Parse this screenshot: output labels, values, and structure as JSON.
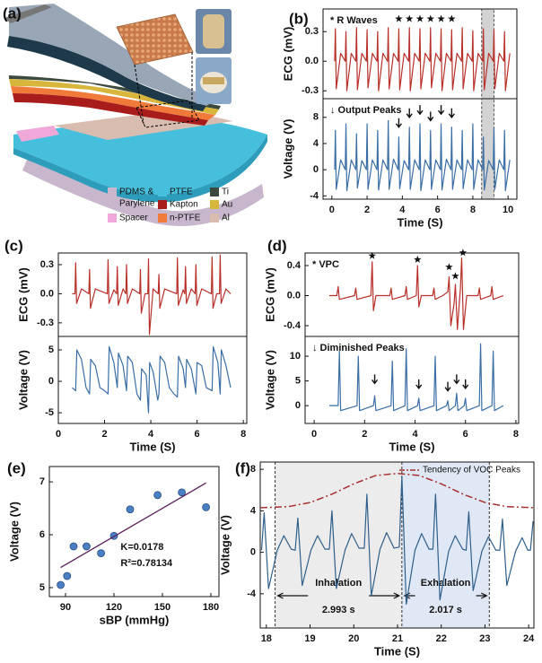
{
  "diagram": {
    "panel": "(a)",
    "legend": [
      {
        "label": [
          "PDMS &",
          "Parylene"
        ],
        "color": "#c8b6cc"
      },
      {
        "label": [
          "PTFE"
        ],
        "color": "#45bfdc"
      },
      {
        "label": [
          "Ti"
        ],
        "color": "#3b4a3c"
      },
      {
        "label": [
          "Spacer"
        ],
        "color": "#f0a8d8"
      },
      {
        "label": [
          "Kapton"
        ],
        "color": "#a81c1c"
      },
      {
        "label": [
          "Au"
        ],
        "color": "#d8b63c"
      },
      {
        "label": [
          "n-PTFE"
        ],
        "color": "#ef7a3a"
      },
      {
        "label": [
          "Al"
        ],
        "color": "#d8bcb0"
      }
    ]
  },
  "chart_data": [
    {
      "panel": "(b)",
      "type": "line",
      "ylabel": "ECG (mV)",
      "annotation": "* R Waves",
      "color": "#b8302a",
      "x": [
        0.16,
        0.2,
        0.25,
        0.5,
        0.76,
        0.8,
        0.85,
        1.1,
        1.36,
        1.4,
        1.45,
        1.7,
        1.96,
        2.0,
        2.05,
        2.3,
        2.56,
        2.6,
        2.65,
        2.9,
        3.16,
        3.2,
        3.25,
        3.5,
        3.76,
        3.8,
        3.85,
        4.1,
        4.36,
        4.4,
        4.45,
        4.7,
        4.96,
        5.0,
        5.05,
        5.3,
        5.56,
        5.6,
        5.65,
        5.9,
        6.16,
        6.2,
        6.25,
        6.5,
        6.76,
        6.8,
        6.85,
        7.1,
        7.36,
        7.4,
        7.45,
        7.7,
        7.96,
        8.0,
        8.05,
        8.3,
        8.56,
        8.6,
        8.65,
        8.9,
        9.16,
        9.2,
        9.25,
        9.5,
        9.76,
        9.8,
        9.85,
        10.1
      ],
      "values": [
        0,
        0.33,
        -0.28,
        0.08,
        0,
        0.3,
        -0.3,
        0.08,
        0,
        0.34,
        -0.29,
        0.08,
        0,
        0.32,
        -0.27,
        0.08,
        0,
        0.3,
        -0.3,
        0.08,
        0,
        0.34,
        -0.28,
        0.08,
        0,
        0.33,
        -0.29,
        0.08,
        0,
        0.34,
        -0.3,
        0.08,
        0,
        0.33,
        -0.28,
        0.08,
        0,
        0.34,
        -0.27,
        0.08,
        0,
        0.33,
        -0.3,
        0.08,
        0,
        0.32,
        -0.29,
        0.08,
        0,
        0.34,
        -0.28,
        0.08,
        0,
        0.31,
        -0.3,
        0.08,
        0,
        0.33,
        -0.29,
        0.08,
        0,
        0.32,
        -0.28,
        0.08,
        0,
        0.3,
        -0.3,
        0.08
      ],
      "xlim": [
        -0.5,
        10.5
      ],
      "ylim": [
        -0.38,
        0.53
      ],
      "yticks": [
        0.3,
        {
          "value": 0,
          "label": "0.0"
        },
        -0.3
      ],
      "highlight": [
        8.5,
        9.2
      ],
      "markers": {
        "shape": "star",
        "x": [
          3.8,
          4.4,
          5.0,
          5.6,
          6.2,
          6.8
        ],
        "values": [
          0.43,
          0.43,
          0.43,
          0.43,
          0.43,
          0.43
        ]
      }
    },
    {
      "type": "line",
      "ylabel": "Voltage (V)",
      "xlabel": "Time (S)",
      "annotation": "↓ Output Peaks",
      "color": "#3a6ea5",
      "x": [
        0.16,
        0.2,
        0.25,
        0.5,
        0.76,
        0.8,
        0.85,
        1.1,
        1.36,
        1.4,
        1.45,
        1.7,
        1.96,
        2.0,
        2.05,
        2.3,
        2.56,
        2.6,
        2.65,
        2.9,
        3.16,
        3.2,
        3.25,
        3.5,
        3.76,
        3.8,
        3.85,
        4.1,
        4.36,
        4.4,
        4.45,
        4.7,
        4.96,
        5.0,
        5.05,
        5.3,
        5.56,
        5.6,
        5.65,
        5.9,
        6.16,
        6.2,
        6.25,
        6.5,
        6.76,
        6.8,
        6.85,
        7.1,
        7.36,
        7.4,
        7.45,
        7.7,
        7.96,
        8.0,
        8.05,
        8.3,
        8.56,
        8.6,
        8.65,
        8.9,
        9.16,
        9.2,
        9.25,
        9.5,
        9.76,
        9.8,
        9.85,
        10.1
      ],
      "values": [
        0,
        6,
        -3,
        1.5,
        0,
        7,
        -3.2,
        1.5,
        0,
        5.5,
        -2.8,
        1.4,
        0,
        7,
        -3,
        1.5,
        0,
        6,
        -3.1,
        1.5,
        0,
        7.5,
        -3,
        1.6,
        0,
        5,
        -2.9,
        1.4,
        0,
        6.5,
        -3,
        1.5,
        0,
        7,
        -3.2,
        1.5,
        0,
        6,
        -3,
        1.5,
        0,
        7,
        -3.1,
        1.6,
        0,
        6.5,
        -3,
        1.5,
        0,
        6,
        -2.9,
        1.5,
        0,
        7,
        -3,
        1.5,
        0,
        5,
        -3.1,
        1.4,
        0,
        6.5,
        -3,
        1.5,
        0,
        6,
        -3.2,
        1.5
      ],
      "xlim": [
        -0.5,
        10.5
      ],
      "ylim": [
        -4.5,
        10.85
      ],
      "xticks": [
        0,
        2,
        4,
        6,
        8,
        10
      ],
      "yticks": [
        8,
        4,
        0,
        -4
      ],
      "highlight": [
        8.5,
        9.2
      ],
      "markers": {
        "shape": "arrow",
        "x": [
          3.8,
          4.4,
          5.0,
          5.6,
          6.2,
          6.8
        ],
        "values": [
          6.5,
          8,
          8.5,
          7.5,
          8.5,
          8
        ]
      }
    },
    {
      "panel": "(c)",
      "type": "line",
      "ylabel": "ECG (mV)",
      "color": "#b8302a",
      "x": [
        0.6,
        0.72,
        0.75,
        0.79,
        1.0,
        1.32,
        1.35,
        1.39,
        1.6,
        2.12,
        2.15,
        2.19,
        2.4,
        2.52,
        2.55,
        2.59,
        2.8,
        2.92,
        2.95,
        2.99,
        3.2,
        3.52,
        3.55,
        3.59,
        3.75,
        3.87,
        3.9,
        3.94,
        4.1,
        4.32,
        4.35,
        4.39,
        4.6,
        5.12,
        5.15,
        5.19,
        5.4,
        5.47,
        5.5,
        5.54,
        5.75,
        5.92,
        5.95,
        5.99,
        6.2,
        6.62,
        6.65,
        6.69,
        6.85,
        6.97,
        7.0,
        7.04,
        7.25,
        7.45
      ],
      "values": [
        0,
        0,
        0.32,
        -0.1,
        0.05,
        0,
        0.25,
        -0.15,
        0.05,
        0,
        0.35,
        -0.1,
        0.04,
        0,
        0.28,
        -0.12,
        0.05,
        0,
        0.3,
        -0.1,
        0.05,
        0,
        0.25,
        -0.2,
        0,
        0,
        0.36,
        -0.42,
        0.05,
        0,
        0.2,
        -0.15,
        0.05,
        0,
        0.37,
        -0.12,
        0.04,
        0,
        0.28,
        -0.1,
        0.05,
        0,
        0.3,
        -0.12,
        0.05,
        0,
        0.38,
        -0.15,
        0,
        0,
        0.4,
        -0.1,
        0.05,
        0
      ],
      "xlim": [
        0,
        8.15
      ],
      "ylim": [
        -0.44,
        0.42
      ],
      "yticks": [
        0.3,
        {
          "value": 0,
          "label": "0.0"
        },
        -0.3
      ]
    },
    {
      "type": "line",
      "ylabel": "Voltage (V)",
      "xlabel": "Time (S)",
      "color": "#3a6ea5",
      "x": [
        0.6,
        0.75,
        0.8,
        1.0,
        1.2,
        1.35,
        1.4,
        1.6,
        1.8,
        2.0,
        2.15,
        2.2,
        2.4,
        2.55,
        2.6,
        2.8,
        2.95,
        3.0,
        3.2,
        3.4,
        3.55,
        3.6,
        3.8,
        3.9,
        3.95,
        4.1,
        4.3,
        4.35,
        4.4,
        4.6,
        4.8,
        5.0,
        5.15,
        5.2,
        5.4,
        5.5,
        5.55,
        5.75,
        5.95,
        6.0,
        6.2,
        6.4,
        6.65,
        6.7,
        6.9,
        7.0,
        7.05,
        7.25,
        7.45
      ],
      "values": [
        -1,
        -1.5,
        5,
        3.5,
        -1,
        -2,
        3.5,
        2.5,
        -1,
        -1.5,
        -2,
        5.5,
        3,
        -1,
        4.5,
        2.5,
        -1.5,
        4,
        3,
        -2,
        -3,
        2,
        1,
        -5,
        3,
        1.5,
        -3,
        -2,
        4,
        3,
        -1,
        -2,
        -2.5,
        4,
        2,
        -1,
        3.5,
        2,
        -2,
        3,
        2.5,
        -1,
        -1.5,
        5.5,
        3,
        -2,
        5,
        2.5,
        -1
      ],
      "xlim": [
        0,
        8.15
      ],
      "ylim": [
        -6.7,
        7.14
      ],
      "xticks": [
        0,
        2,
        4,
        6,
        8
      ],
      "yticks": [
        5,
        0,
        -5
      ]
    },
    {
      "panel": "(d)",
      "type": "line",
      "ylabel": "ECG (mV)",
      "annotation": "* VPC",
      "color": "#b8302a",
      "x": [
        0.6,
        0.9,
        0.95,
        1.0,
        1.6,
        1.65,
        1.7,
        2.25,
        2.3,
        2.35,
        2.45,
        3.0,
        3.05,
        3.1,
        3.6,
        3.65,
        3.7,
        4.05,
        4.1,
        4.15,
        4.25,
        4.7,
        4.75,
        4.8,
        5.1,
        5.3,
        5.35,
        5.42,
        5.55,
        5.6,
        5.68,
        5.8,
        5.85,
        5.92,
        6.05,
        6.5,
        6.55,
        6.6,
        7.0,
        7.05,
        7.1,
        7.5
      ],
      "values": [
        0,
        0,
        0.12,
        -0.05,
        0,
        0.1,
        -0.05,
        0,
        0.45,
        -0.2,
        0,
        0,
        0.1,
        -0.05,
        0,
        0.12,
        -0.05,
        0,
        0.4,
        -0.15,
        0,
        0,
        0.1,
        -0.05,
        0,
        0.05,
        0.25,
        -0.4,
        -0.1,
        0.15,
        -0.45,
        0.1,
        0.5,
        -0.45,
        0,
        0,
        0.1,
        -0.05,
        0,
        0.12,
        -0.05,
        0
      ],
      "xlim": [
        -0.36,
        8.11
      ],
      "ylim": [
        -0.543,
        0.567
      ],
      "yticks": [
        0.4,
        {
          "value": 0,
          "label": "0.0"
        },
        -0.4
      ],
      "markers": {
        "shape": "star",
        "x": [
          2.3,
          4.1,
          5.35,
          5.6,
          5.9
        ],
        "values": [
          0.53,
          0.48,
          0.38,
          0.26,
          0.57
        ]
      }
    },
    {
      "type": "line",
      "ylabel": "Voltage (V)",
      "xlabel": "Time (S)",
      "annotation": "↓ Diminished Peaks",
      "color": "#3a6ea5",
      "x": [
        0.6,
        0.95,
        1.0,
        1.05,
        1.7,
        1.75,
        1.8,
        2.35,
        2.4,
        2.45,
        3.05,
        3.1,
        3.15,
        3.6,
        3.65,
        3.7,
        4.1,
        4.15,
        4.2,
        4.75,
        4.8,
        4.85,
        5.25,
        5.3,
        5.35,
        5.6,
        5.65,
        5.7,
        5.95,
        6.0,
        6.05,
        6.55,
        6.6,
        6.65,
        7.05,
        7.1,
        7.15,
        7.5
      ],
      "values": [
        0,
        0,
        11,
        -1,
        0,
        10,
        -1,
        0,
        2,
        -1,
        0,
        9,
        -1,
        0,
        11.5,
        -1,
        0,
        1.5,
        -1,
        0,
        10,
        -1,
        0,
        1,
        -1,
        0,
        2.5,
        -1,
        0,
        1.5,
        -1,
        0,
        12.5,
        -1,
        0,
        11,
        -1,
        0
      ],
      "xlim": [
        -0.36,
        8.11
      ],
      "ylim": [
        -3.6,
        14
      ],
      "xticks": [
        0,
        2,
        4,
        6,
        8
      ],
      "yticks": [
        10,
        5,
        0
      ],
      "markers": {
        "shape": "arrow",
        "x": [
          2.4,
          4.15,
          5.3,
          5.65,
          6.0
        ],
        "values": [
          4.5,
          3.5,
          3,
          4.5,
          3.5
        ]
      }
    },
    {
      "panel": "(e)",
      "type": "scatter",
      "ylabel": "Voltage (V)",
      "xlabel": "sBP (mmHg)",
      "color": "#4a7fc4",
      "x": [
        87,
        91,
        95,
        103,
        112,
        120,
        130,
        147,
        162,
        177
      ],
      "values": [
        5.05,
        5.22,
        5.78,
        5.78,
        5.65,
        5.98,
        6.48,
        6.75,
        6.8,
        6.52
      ],
      "fit": {
        "x": [
          87,
          177
        ],
        "values": [
          5.38,
          6.98
        ],
        "color": "#5a1f5a"
      },
      "annotations": [
        "K=0.0178",
        "R²=0.78134"
      ],
      "xlim": [
        80,
        185
      ],
      "ylim": [
        4.83,
        7.29
      ],
      "xticks": [
        90,
        120,
        150,
        180
      ],
      "yticks": [
        7,
        6,
        5
      ]
    },
    {
      "panel": "(f)",
      "type": "line",
      "ylabel": "Voltage (V)",
      "xlabel": "Time (S)",
      "legend": "upper right",
      "series": [
        {
          "color": "#2f5f8a",
          "x": [
            17.89,
            17.95,
            18.05,
            18.25,
            18.4,
            18.57,
            18.66,
            18.72,
            18.82,
            19.02,
            19.17,
            19.34,
            19.44,
            19.5,
            19.6,
            19.8,
            19.95,
            20.12,
            20.24,
            20.3,
            20.4,
            20.6,
            20.75,
            20.92,
            21.04,
            21.1,
            21.2,
            21.4,
            21.55,
            21.72,
            21.81,
            21.87,
            21.97,
            22.17,
            22.32,
            22.49,
            22.57,
            22.63,
            22.73,
            22.93,
            23.08,
            23.25,
            23.34,
            23.4,
            23.5,
            23.7,
            23.85,
            23.98,
            24.04,
            24.1
          ],
          "values": [
            0.2,
            3.8,
            -3.5,
            0.2,
            1.6,
            0.3,
            0.2,
            3.3,
            -3.2,
            0.2,
            1.6,
            0.3,
            0.3,
            4.0,
            -3.5,
            0.2,
            1.8,
            0.4,
            0.4,
            5.6,
            -4.2,
            0.3,
            1.9,
            0.4,
            0.5,
            7.3,
            -5.0,
            0.2,
            1.8,
            0.3,
            0.3,
            5.6,
            -4.6,
            0.1,
            1.6,
            0.3,
            0.2,
            3.9,
            -3.7,
            0.1,
            1.5,
            0.2,
            0.2,
            3.2,
            -3.2,
            0.1,
            1.4,
            0.2,
            0.2,
            3.0
          ]
        },
        {
          "name": "Tendency of VOC Peaks",
          "color": "#a83030",
          "dash": "dashdot",
          "x": [
            17.86,
            18.5,
            19,
            19.5,
            20,
            20.5,
            21,
            21.5,
            22,
            22.5,
            23,
            23.5,
            24.1
          ],
          "values": [
            4.3,
            4.4,
            4.8,
            5.6,
            6.6,
            7.4,
            7.6,
            7.4,
            6.6,
            5.6,
            4.8,
            4.4,
            4.3
          ]
        }
      ],
      "xlim": [
        17.86,
        24.12
      ],
      "ylim": [
        -7.3,
        8.7
      ],
      "xticks": [
        18,
        19,
        20,
        21,
        22,
        23,
        24
      ],
      "yticks": [
        8,
        4,
        0,
        -4
      ],
      "vlines": [
        18.2,
        21.1,
        23.1
      ],
      "phases": [
        {
          "label": "Inhalation",
          "duration": "2.993 s",
          "span": [
            18.2,
            21.1
          ],
          "color": "#ececec"
        },
        {
          "label": "Exhalation",
          "duration": "2.017 s",
          "span": [
            21.1,
            23.1
          ],
          "color": "#e0e8f5"
        }
      ]
    }
  ]
}
